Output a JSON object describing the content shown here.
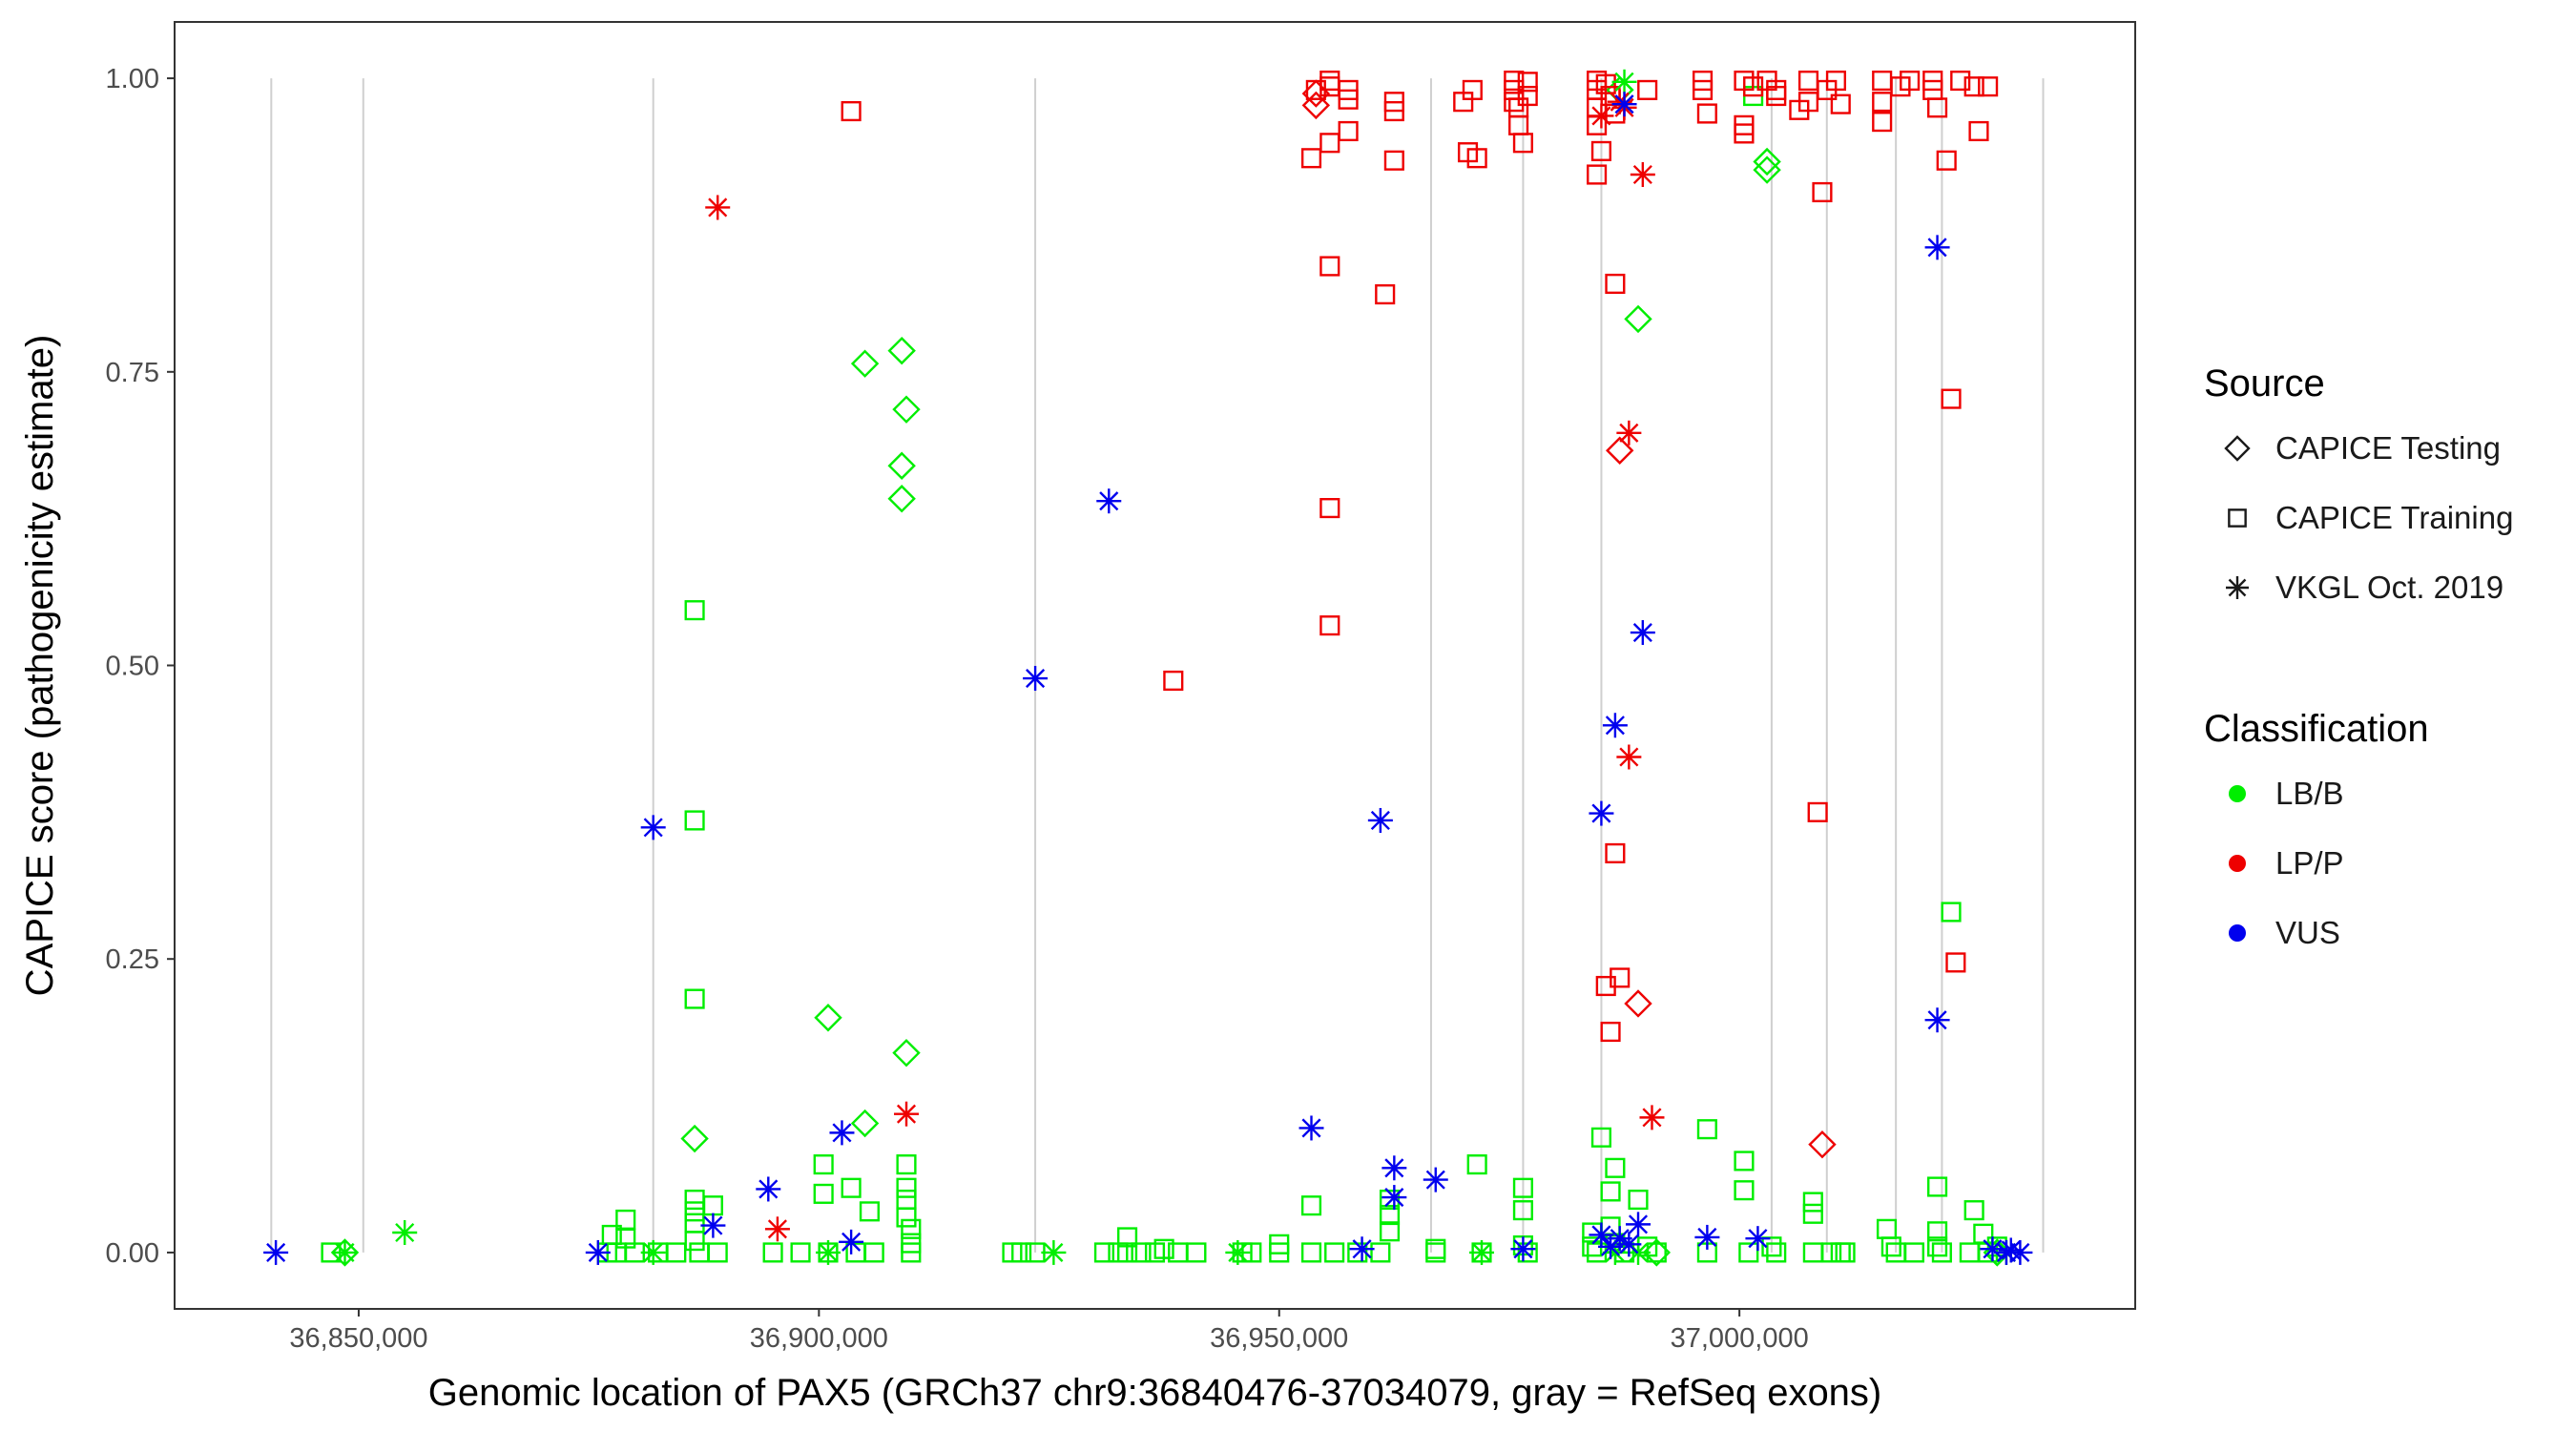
{
  "chart_data": {
    "type": "scatter",
    "xlabel": "Genomic location of PAX5 (GRCh37 chr9:36840476-37034079, gray = RefSeq exons)",
    "ylabel": "CAPICE score (pathogenicity estimate)",
    "xlim": [
      36830000,
      37043000
    ],
    "ylim": [
      -0.048,
      1.048
    ],
    "x_ticks": [
      36850000,
      36900000,
      36950000,
      37000000
    ],
    "x_tick_labels": [
      "36,850,000",
      "36,900,000",
      "36,950,000",
      "37,000,000"
    ],
    "y_ticks": [
      0.0,
      0.25,
      0.5,
      0.75,
      1.0
    ],
    "y_tick_labels": [
      "0.00",
      "0.25",
      "0.50",
      "0.75",
      "1.00"
    ],
    "exons": [
      36840500,
      36850500,
      36882000,
      36923500,
      36966500,
      36976500,
      36985000,
      37003500,
      37009500,
      37017000,
      37022000,
      37033000
    ],
    "legend_source": {
      "title": "Source",
      "entries": [
        {
          "label": "CAPICE Testing",
          "shape": "diamond"
        },
        {
          "label": "CAPICE Training",
          "shape": "square"
        },
        {
          "label": "VKGL Oct. 2019",
          "shape": "asterisk"
        }
      ]
    },
    "legend_class": {
      "title": "Classification",
      "entries": [
        {
          "label": "LB/B",
          "color": "#00ee00"
        },
        {
          "label": "LP/P",
          "color": "#ee0000"
        },
        {
          "label": "VUS",
          "color": "#0000ee"
        }
      ]
    },
    "series": [
      {
        "name": "CAPICE Testing / LB/B",
        "shape": "diamond",
        "color": "#00ee00",
        "points": [
          [
            36848500,
            0.0
          ],
          [
            36886500,
            0.097
          ],
          [
            36901000,
            0.2
          ],
          [
            36905000,
            0.757
          ],
          [
            36905000,
            0.11
          ],
          [
            36909000,
            0.768
          ],
          [
            36909500,
            0.718
          ],
          [
            36909000,
            0.67
          ],
          [
            36909000,
            0.642
          ],
          [
            36909500,
            0.17
          ],
          [
            36987000,
            0.99
          ],
          [
            36989000,
            0.795
          ],
          [
            37003000,
            0.929
          ],
          [
            37003000,
            0.922
          ],
          [
            36991000,
            0.0
          ],
          [
            37028000,
            0.0
          ]
        ]
      },
      {
        "name": "CAPICE Testing / LP/P",
        "shape": "diamond",
        "color": "#ee0000",
        "points": [
          [
            36954000,
            0.987
          ],
          [
            36954000,
            0.977
          ],
          [
            36987000,
            0.683
          ],
          [
            36989000,
            0.212
          ],
          [
            37009000,
            0.092
          ]
        ]
      },
      {
        "name": "CAPICE Training / LB/B",
        "shape": "square",
        "color": "#00ee00",
        "points": [
          [
            36847000,
            0.0
          ],
          [
            36877000,
            0.0
          ],
          [
            36877500,
            0.015
          ],
          [
            36878000,
            0.0
          ],
          [
            36879000,
            0.028
          ],
          [
            36879000,
            0.012
          ],
          [
            36880000,
            0.0
          ],
          [
            36882500,
            0.0
          ],
          [
            36884500,
            0.0
          ],
          [
            36886500,
            0.547
          ],
          [
            36886500,
            0.368
          ],
          [
            36886500,
            0.216
          ],
          [
            36886500,
            0.045
          ],
          [
            36886500,
            0.035
          ],
          [
            36886500,
            0.025
          ],
          [
            36886500,
            0.01
          ],
          [
            36887000,
            0.0
          ],
          [
            36888500,
            0.04
          ],
          [
            36889000,
            0.0
          ],
          [
            36895000,
            0.0
          ],
          [
            36898000,
            0.0
          ],
          [
            36900500,
            0.075
          ],
          [
            36900500,
            0.05
          ],
          [
            36901000,
            0.0
          ],
          [
            36903500,
            0.055
          ],
          [
            36904000,
            0.0
          ],
          [
            36905500,
            0.035
          ],
          [
            36906000,
            0.0
          ],
          [
            36909500,
            0.075
          ],
          [
            36909500,
            0.055
          ],
          [
            36909500,
            0.045
          ],
          [
            36909500,
            0.03
          ],
          [
            36910000,
            0.02
          ],
          [
            36910000,
            0.008
          ],
          [
            36910000,
            0.0
          ],
          [
            36921000,
            0.0
          ],
          [
            36922000,
            0.0
          ],
          [
            36923500,
            0.0
          ],
          [
            36931000,
            0.0
          ],
          [
            36932500,
            0.0
          ],
          [
            36933500,
            0.0
          ],
          [
            36933500,
            0.013
          ],
          [
            36935000,
            0.0
          ],
          [
            36936500,
            0.0
          ],
          [
            36937500,
            0.003
          ],
          [
            36939000,
            0.0
          ],
          [
            36941000,
            0.0
          ],
          [
            36946000,
            0.0
          ],
          [
            36947000,
            0.0
          ],
          [
            36950000,
            0.0
          ],
          [
            36950000,
            0.007
          ],
          [
            36953500,
            0.04
          ],
          [
            36953500,
            0.0
          ],
          [
            36956000,
            0.0
          ],
          [
            36958500,
            0.0
          ],
          [
            36961000,
            0.0
          ],
          [
            36962000,
            0.045
          ],
          [
            36962000,
            0.032
          ],
          [
            36962000,
            0.018
          ],
          [
            36967000,
            0.003
          ],
          [
            36967000,
            0.0
          ],
          [
            36971500,
            0.075
          ],
          [
            36972000,
            0.0
          ],
          [
            36976500,
            0.055
          ],
          [
            36976500,
            0.036
          ],
          [
            36976500,
            0.006
          ],
          [
            36977000,
            0.0
          ],
          [
            36984000,
            0.017
          ],
          [
            36984000,
            0.005
          ],
          [
            36984500,
            0.0
          ],
          [
            36985000,
            0.098
          ],
          [
            36986500,
            0.072
          ],
          [
            36986000,
            0.052
          ],
          [
            36986000,
            0.022
          ],
          [
            36986500,
            0.008
          ],
          [
            36987500,
            0.0
          ],
          [
            36989000,
            0.045
          ],
          [
            36990000,
            0.005
          ],
          [
            36991000,
            0.0
          ],
          [
            36996500,
            0.105
          ],
          [
            36996500,
            0.0
          ],
          [
            37000500,
            0.078
          ],
          [
            37000500,
            0.053
          ],
          [
            37001000,
            0.0
          ],
          [
            37001500,
            0.985
          ],
          [
            37003500,
            0.005
          ],
          [
            37004000,
            0.0
          ],
          [
            37008000,
            0.043
          ],
          [
            37008000,
            0.033
          ],
          [
            37008000,
            0.0
          ],
          [
            37010000,
            0.0
          ],
          [
            37011000,
            0.0
          ],
          [
            37011500,
            0.0
          ],
          [
            37016000,
            0.02
          ],
          [
            37016500,
            0.005
          ],
          [
            37017000,
            0.0
          ],
          [
            37019000,
            0.0
          ],
          [
            37021500,
            0.056
          ],
          [
            37021500,
            0.018
          ],
          [
            37021500,
            0.005
          ],
          [
            37022000,
            0.0
          ],
          [
            37023000,
            0.29
          ],
          [
            37025000,
            0.0
          ],
          [
            37025500,
            0.036
          ],
          [
            37026500,
            0.016
          ],
          [
            37027000,
            0.0
          ],
          [
            37028000,
            0.005
          ]
        ]
      },
      {
        "name": "CAPICE Training / LP/P",
        "shape": "square",
        "color": "#ee0000",
        "points": [
          [
            36903500,
            0.972
          ],
          [
            36938500,
            0.487
          ],
          [
            36953500,
            0.932
          ],
          [
            36954000,
            0.99
          ],
          [
            36955500,
            0.84
          ],
          [
            36955500,
            0.634
          ],
          [
            36955500,
            0.534
          ],
          [
            36955500,
            0.998
          ],
          [
            36955500,
            0.993
          ],
          [
            36955500,
            0.945
          ],
          [
            36957500,
            0.99
          ],
          [
            36957500,
            0.982
          ],
          [
            36957500,
            0.955
          ],
          [
            36961500,
            0.816
          ],
          [
            36962500,
            0.98
          ],
          [
            36962500,
            0.972
          ],
          [
            36962500,
            0.93
          ],
          [
            36970000,
            0.98
          ],
          [
            36970500,
            0.937
          ],
          [
            36971000,
            0.99
          ],
          [
            36971500,
            0.932
          ],
          [
            36975500,
            0.998
          ],
          [
            36975500,
            0.99
          ],
          [
            36975500,
            0.98
          ],
          [
            36976000,
            0.975
          ],
          [
            36976000,
            0.96
          ],
          [
            36976500,
            0.945
          ],
          [
            36977000,
            0.997
          ],
          [
            36977000,
            0.985
          ],
          [
            36984500,
            0.998
          ],
          [
            36984500,
            0.99
          ],
          [
            36984500,
            0.975
          ],
          [
            36984500,
            0.96
          ],
          [
            36985000,
            0.938
          ],
          [
            36984500,
            0.918
          ],
          [
            36985500,
            0.995
          ],
          [
            36986000,
            0.985
          ],
          [
            36986500,
            0.97
          ],
          [
            36986500,
            0.825
          ],
          [
            36986500,
            0.34
          ],
          [
            36987000,
            0.234
          ],
          [
            36985500,
            0.227
          ],
          [
            36986000,
            0.188
          ],
          [
            36990000,
            0.99
          ],
          [
            36996000,
            0.998
          ],
          [
            36996000,
            0.99
          ],
          [
            36996500,
            0.97
          ],
          [
            37000500,
            0.998
          ],
          [
            37000500,
            0.96
          ],
          [
            37000500,
            0.953
          ],
          [
            37001500,
            0.993
          ],
          [
            37003000,
            0.998
          ],
          [
            37004000,
            0.99
          ],
          [
            37004000,
            0.985
          ],
          [
            37006500,
            0.973
          ],
          [
            37007500,
            0.998
          ],
          [
            37007500,
            0.98
          ],
          [
            37009500,
            0.99
          ],
          [
            37008500,
            0.375
          ],
          [
            37009000,
            0.903
          ],
          [
            37010500,
            0.998
          ],
          [
            37011000,
            0.978
          ],
          [
            37015500,
            0.998
          ],
          [
            37015500,
            0.98
          ],
          [
            37015500,
            0.963
          ],
          [
            37017500,
            0.993
          ],
          [
            37018500,
            0.998
          ],
          [
            37021000,
            0.998
          ],
          [
            37021000,
            0.99
          ],
          [
            37021500,
            0.975
          ],
          [
            37022500,
            0.93
          ],
          [
            37023000,
            0.727
          ],
          [
            37023500,
            0.247
          ],
          [
            37024000,
            0.998
          ],
          [
            37025500,
            0.993
          ],
          [
            37026000,
            0.955
          ],
          [
            37027000,
            0.993
          ]
        ]
      },
      {
        "name": "VKGL Oct. 2019 / LB/B",
        "shape": "asterisk",
        "color": "#00ee00",
        "points": [
          [
            36848500,
            0.0
          ],
          [
            36855000,
            0.017
          ],
          [
            36882000,
            0.0
          ],
          [
            36901000,
            0.0
          ],
          [
            36925500,
            0.0
          ],
          [
            36945500,
            0.0
          ],
          [
            36972000,
            0.0
          ],
          [
            36986500,
            0.0
          ],
          [
            36987500,
            0.997
          ],
          [
            36989000,
            0.0
          ],
          [
            37029000,
            0.0
          ]
        ]
      },
      {
        "name": "VKGL Oct. 2019 / LP/P",
        "shape": "asterisk",
        "color": "#ee0000",
        "points": [
          [
            36889000,
            0.89
          ],
          [
            36895500,
            0.02
          ],
          [
            36909500,
            0.118
          ],
          [
            36985000,
            0.968
          ],
          [
            36987000,
            0.98
          ],
          [
            36987500,
            0.975
          ],
          [
            36988000,
            0.698
          ],
          [
            36988000,
            0.422
          ],
          [
            36989500,
            0.918
          ],
          [
            36990500,
            0.115
          ]
        ]
      },
      {
        "name": "VKGL Oct. 2019 / VUS",
        "shape": "asterisk",
        "color": "#0000ee",
        "points": [
          [
            36841000,
            0.0
          ],
          [
            36876000,
            0.0
          ],
          [
            36882000,
            0.362
          ],
          [
            36888500,
            0.023
          ],
          [
            36894500,
            0.054
          ],
          [
            36902500,
            0.102
          ],
          [
            36903500,
            0.009
          ],
          [
            36923500,
            0.489
          ],
          [
            36931500,
            0.64
          ],
          [
            36953500,
            0.106
          ],
          [
            36959000,
            0.003
          ],
          [
            36961000,
            0.368
          ],
          [
            36962500,
            0.072
          ],
          [
            36962500,
            0.047
          ],
          [
            36967000,
            0.062
          ],
          [
            36976500,
            0.003
          ],
          [
            36985000,
            0.374
          ],
          [
            36985000,
            0.015
          ],
          [
            36986000,
            0.005
          ],
          [
            36986500,
            0.449
          ],
          [
            36987000,
            0.012
          ],
          [
            36987500,
            0.978
          ],
          [
            36988000,
            0.007
          ],
          [
            36989000,
            0.024
          ],
          [
            36989500,
            0.528
          ],
          [
            36996500,
            0.013
          ],
          [
            37002000,
            0.012
          ],
          [
            37021500,
            0.856
          ],
          [
            37021500,
            0.198
          ],
          [
            37027500,
            0.003
          ],
          [
            37029000,
            0.0
          ],
          [
            37029500,
            0.002
          ],
          [
            37030500,
            0.0
          ]
        ]
      }
    ]
  }
}
